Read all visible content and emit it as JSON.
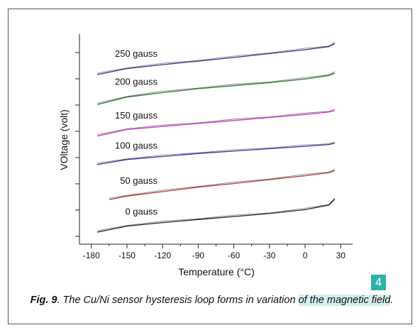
{
  "chart_data": {
    "type": "line",
    "xlabel": "Temperature (°C)",
    "ylabel": "VOltage (volt)",
    "xlim": [
      -190,
      40
    ],
    "x_ticks": [
      -180,
      -150,
      -120,
      -90,
      -60,
      -30,
      0,
      30
    ],
    "y_ticks_labeled": false,
    "grid": false,
    "series": [
      {
        "name": "250 gauss",
        "color": "#33338a",
        "x": [
          -175,
          -150,
          -120,
          -90,
          -60,
          -30,
          0,
          20,
          25
        ],
        "values": [
          5.05,
          5.25,
          5.38,
          5.5,
          5.62,
          5.75,
          5.88,
          5.98,
          6.08
        ]
      },
      {
        "name": "200 gauss",
        "color": "#2f7a2f",
        "x": [
          -175,
          -150,
          -120,
          -90,
          -60,
          -30,
          0,
          20,
          25
        ],
        "values": [
          4.05,
          4.3,
          4.45,
          4.58,
          4.68,
          4.78,
          4.9,
          5.02,
          5.1
        ]
      },
      {
        "name": "150 gauss",
        "color": "#cc33cc",
        "x": [
          -175,
          -150,
          -120,
          -90,
          -60,
          -30,
          0,
          20,
          25
        ],
        "values": [
          3.0,
          3.22,
          3.32,
          3.42,
          3.52,
          3.62,
          3.72,
          3.8,
          3.85
        ]
      },
      {
        "name": "100 gauss",
        "color": "#3333aa",
        "x": [
          -175,
          -150,
          -120,
          -90,
          -60,
          -30,
          0,
          20,
          25
        ],
        "values": [
          2.05,
          2.22,
          2.32,
          2.42,
          2.5,
          2.58,
          2.66,
          2.72,
          2.76
        ]
      },
      {
        "name": "50 gauss",
        "color": "#b03a3a",
        "x": [
          -165,
          -150,
          -120,
          -90,
          -60,
          -30,
          0,
          20,
          25
        ],
        "values": [
          0.88,
          1.0,
          1.15,
          1.3,
          1.42,
          1.55,
          1.68,
          1.78,
          1.85
        ]
      },
      {
        "name": "0 gauss",
        "color": "#222222",
        "x": [
          -175,
          -150,
          -120,
          -90,
          -60,
          -30,
          0,
          20,
          25
        ],
        "values": [
          -0.2,
          0.0,
          0.12,
          0.22,
          0.32,
          0.42,
          0.55,
          0.7,
          0.9
        ]
      }
    ]
  },
  "caption": {
    "fig_label": "Fig. 9",
    "text_before": ". The Cu/Ni sensor hysteresis loop forms in variation ",
    "highlight": "of the magnetic field",
    "text_after": "."
  },
  "highlight_badge": "4"
}
